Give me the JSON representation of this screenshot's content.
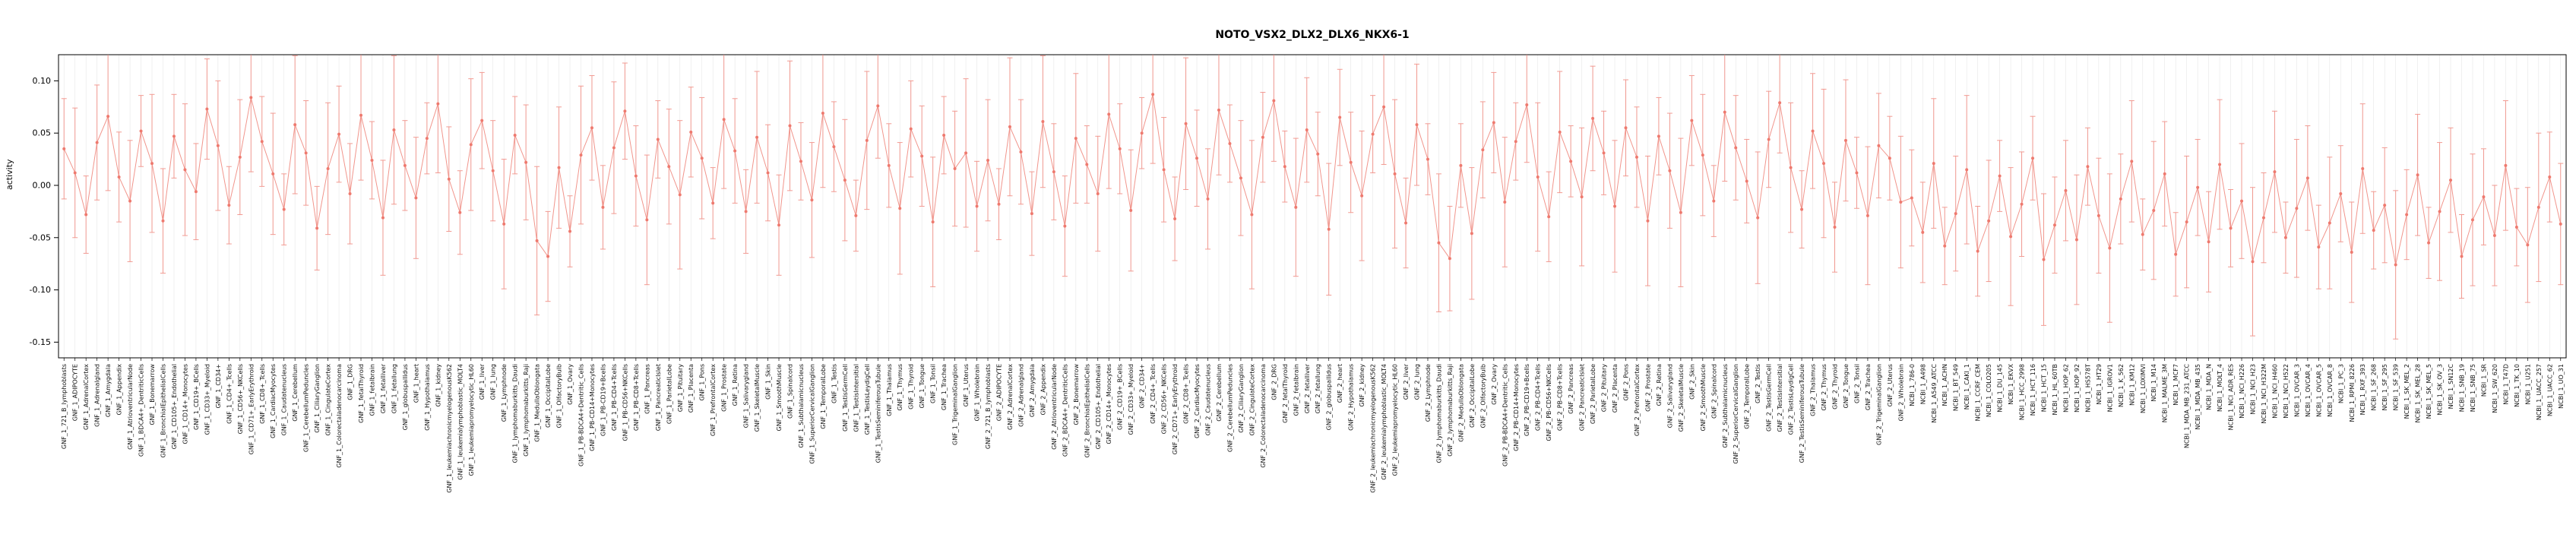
{
  "page": {
    "background": "#ffffff"
  },
  "chart_data": {
    "type": "scatter",
    "subtype": "pointrange-with-errorbars-and-line",
    "title": "NOTO_VSX2_DLX2_DLX6_NKX6-1",
    "ylabel": "activity",
    "xlabel": "",
    "ylim": [
      -0.165,
      0.125
    ],
    "yticks": [
      "0.10",
      "0.05",
      "0.00",
      "-0.05",
      "-0.10",
      "-0.15"
    ],
    "ytick_values": [
      0.1,
      0.05,
      0.0,
      -0.05,
      -0.1,
      -0.15
    ],
    "grid": "vertical-light",
    "legend": "none",
    "point_color": "#ee7a6f",
    "line_color": "#f0897f",
    "errorbar_color": "#f0897f",
    "axis_color": "#000000",
    "grid_color": "#e7e7e7",
    "tissue_names": [
      "721_B_lymphoblasts",
      "ADIPOCYTE",
      "AdrenalCortex",
      "Adrenalgland",
      "Amygdala",
      "Appendix",
      "AtrioventricularNode",
      "BDCA4+_DentriticCells",
      "Bonemarrow",
      "BronchialEpithelialCells",
      "CD105+_Endothelial",
      "CD14+_Monocytes",
      "CD19+_BCells",
      "CD33+_Myeloid",
      "CD34+",
      "CD4+_Tcells",
      "CD56+_NKCells",
      "CD71+_EarlyErythroid",
      "CD8+_Tcells",
      "CardiacMyocytes",
      "Caudatenucleus",
      "Cerebellum",
      "CerebellumPeduncles",
      "CiliaryGanglion",
      "CingulateCortex",
      "Colorectaladenocarcinoma",
      "DRG",
      "fetalThyroid",
      "fetalbrain",
      "fetalliver",
      "fetallung",
      "globuspallidus",
      "heart",
      "Hypothalamus",
      "kidney",
      "leukemiachronicmyelogenousK562",
      "leukemialymphoblastic_MOLT4",
      "leukemiapromyelocytic_HL60",
      "liver",
      "lung",
      "Lymphnode",
      "lymphomaburkitts_Daudi",
      "lymphomaburkitts_Raji",
      "MedullaOblongata",
      "OccipitalLobe",
      "OlfactoryBulb",
      "Ovary",
      "PB-BDCA4+Dentritic_Cells",
      "PB-CD14+Monocytes",
      "PB-CD19+Bcells",
      "PB-CD4+Tcells",
      "PB-CD56+NKCells",
      "PB-CD8+Tcells",
      "Pancreas",
      "PancreaticIslet",
      "ParietalLobe",
      "Pituitary",
      "Placenta",
      "Pons",
      "PrefrontalCortex",
      "Prostate",
      "Retina",
      "Salivarygland",
      "SkeletalMuscle",
      "Skin",
      "SmoothMuscle",
      "Spinalcord",
      "Subthalamicnucleus",
      "SuperiorCervicalGanglion",
      "TemporalLobe",
      "Testis",
      "TestisGermCell",
      "TestisIntersitial",
      "TestisLeydigCell",
      "TestisSeminiferousTubule",
      "Thalamus",
      "Thymus",
      "Thyroid",
      "Tongue",
      "Tonsil",
      "Trachea",
      "TrigeminalGanglion",
      "Uterus",
      "Wholebrain"
    ],
    "cell_line_names": [
      "786-0",
      "A498",
      "A549_ATCC",
      "ACHN",
      "BT_549",
      "CAKI_1",
      "CCRF_CEM",
      "COLO205",
      "DU_145",
      "EKVX",
      "HCC_2998",
      "HCT_116",
      "HCT_15",
      "HL_60TB",
      "HOP_62",
      "HOP_92",
      "HS578T",
      "HT29",
      "IGROV1",
      "K_562",
      "KM12",
      "LOXIMVI",
      "M14",
      "MALME_3M",
      "MCF7",
      "MDA_MB_231_ATCC",
      "MDA_MB_435",
      "MDA_N",
      "MOLT_4",
      "NCI_ADR_RES",
      "NCI_H226",
      "NCI_H23",
      "NCI_H322M",
      "NCI_H460",
      "NCI_H522",
      "OVCAR_3",
      "OVCAR_4",
      "OVCAR_5",
      "OVCAR_8",
      "PC_3",
      "RPMI_8226",
      "RXF_393",
      "SF_268",
      "SF_295",
      "SF_539",
      "SK_MEL_2",
      "SK_MEL_28",
      "SK_MEL_5",
      "SK_OV_3",
      "SN12C",
      "SNB_19",
      "SNB_75",
      "SR",
      "SW_620",
      "T47D",
      "TK_10",
      "U251",
      "UACC_257",
      "UACC_62",
      "UO_31"
    ],
    "groups": [
      {
        "prefix": "GNF_1_",
        "use": "tissue_names"
      },
      {
        "prefix": "GNF_2_",
        "use": "tissue_names"
      },
      {
        "prefix": "NCBI_1_",
        "use": "cell_line_names"
      }
    ],
    "values": [
      0.035,
      0.012,
      -0.028,
      0.041,
      0.066,
      0.008,
      -0.015,
      0.052,
      0.021,
      -0.034,
      0.047,
      0.015,
      -0.006,
      0.073,
      0.038,
      -0.019,
      0.027,
      0.084,
      0.042,
      0.011,
      -0.023,
      0.058,
      0.031,
      -0.041,
      0.016,
      0.049,
      -0.008,
      0.067,
      0.024,
      -0.031,
      0.053,
      0.019,
      -0.012,
      0.045,
      0.078,
      0.006,
      -0.026,
      0.039,
      0.062,
      0.014,
      -0.037,
      0.048,
      0.022,
      -0.053,
      -0.068,
      0.017,
      -0.044,
      0.029,
      0.055,
      -0.021,
      0.036,
      0.071,
      0.009,
      -0.033,
      0.044,
      0.018,
      -0.009,
      0.051,
      0.026,
      -0.017,
      0.063,
      0.033,
      -0.025,
      0.046,
      0.012,
      -0.038,
      0.057,
      0.023,
      -0.014,
      0.069,
      0.037,
      0.005,
      -0.029,
      0.043,
      0.076,
      0.019,
      -0.022,
      0.054,
      0.028,
      -0.035,
      0.048,
      0.016,
      0.031,
      -0.02,
      0.024,
      -0.018,
      0.056,
      0.032,
      -0.027,
      0.061,
      0.013,
      -0.039,
      0.045,
      0.02,
      -0.008,
      0.068,
      0.035,
      -0.024,
      0.05,
      0.087,
      0.015,
      -0.032,
      0.059,
      0.026,
      -0.013,
      0.072,
      0.04,
      0.007,
      -0.028,
      0.046,
      0.081,
      0.018,
      -0.021,
      0.053,
      0.03,
      -0.042,
      0.065,
      0.022,
      -0.01,
      0.049,
      0.075,
      0.011,
      -0.036,
      0.058,
      0.025,
      -0.055,
      -0.07,
      0.019,
      -0.046,
      0.034,
      0.06,
      -0.016,
      0.042,
      0.077,
      0.008,
      -0.03,
      0.051,
      0.023,
      -0.011,
      0.064,
      0.031,
      -0.02,
      0.055,
      0.027,
      -0.034,
      0.047,
      0.014,
      -0.026,
      0.062,
      0.029,
      -0.015,
      0.07,
      0.036,
      0.004,
      -0.031,
      0.044,
      0.079,
      0.017,
      -0.023,
      0.052,
      0.021,
      -0.04,
      0.043,
      0.012,
      -0.029,
      0.038,
      0.026,
      -0.016,
      -0.012,
      -0.045,
      0.021,
      -0.058,
      -0.027,
      0.015,
      -0.063,
      -0.034,
      0.009,
      -0.049,
      -0.018,
      0.026,
      -0.071,
      -0.038,
      -0.005,
      -0.052,
      0.018,
      -0.029,
      -0.06,
      -0.013,
      0.023,
      -0.047,
      -0.024,
      0.011,
      -0.066,
      -0.035,
      -0.002,
      -0.054,
      0.02,
      -0.041,
      -0.015,
      -0.073,
      -0.031,
      0.013,
      -0.05,
      -0.022,
      0.007,
      -0.059,
      -0.036,
      -0.008,
      -0.064,
      0.016,
      -0.043,
      -0.019,
      -0.076,
      -0.028,
      0.01,
      -0.055,
      -0.025,
      0.005,
      -0.068,
      -0.033,
      -0.011,
      -0.048,
      0.019,
      -0.04,
      -0.057,
      -0.021,
      0.008,
      -0.037
    ],
    "errors_cycle": [
      0.048,
      0.062,
      0.037,
      0.055,
      0.071,
      0.043,
      0.058,
      0.034,
      0.066,
      0.05,
      0.04,
      0.063,
      0.046
    ]
  }
}
